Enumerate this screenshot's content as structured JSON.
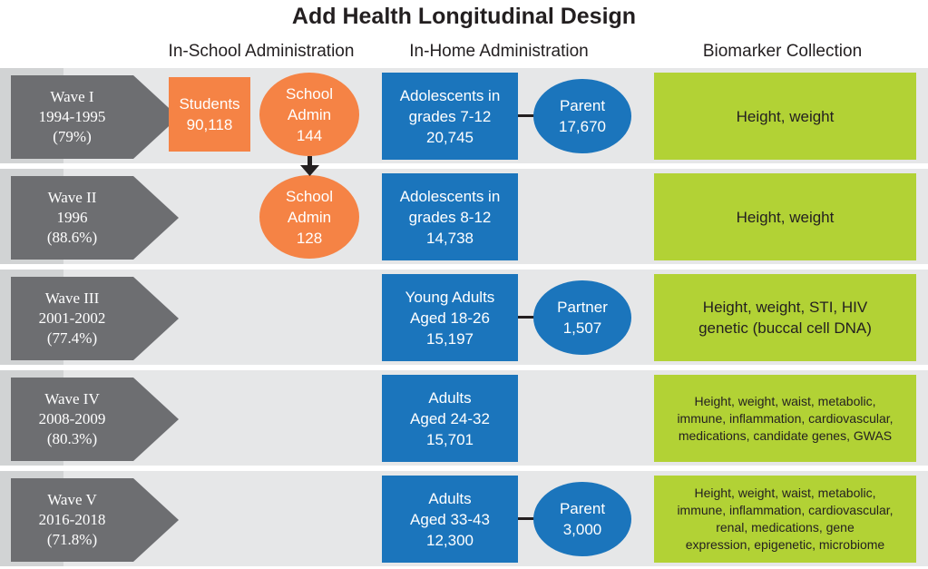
{
  "title": "Add Health Longitudinal Design",
  "columns": {
    "school": "In-School Administration",
    "home": "In-Home Administration",
    "bio": "Biomarker Collection"
  },
  "colors": {
    "orange": "#f58345",
    "blue": "#1b75bc",
    "green": "#b2d235",
    "gray": "#6d6e71",
    "band": "#e6e7e8"
  },
  "waves": [
    {
      "name": "Wave I",
      "years": "1994-1995",
      "rate": "(79%)",
      "students": {
        "label": "Students",
        "count": "90,118"
      },
      "school_admin": {
        "label1": "School",
        "label2": "Admin",
        "count": "144"
      },
      "home": {
        "line1": "Adolescents in",
        "line2": "grades 7-12",
        "count": "20,745"
      },
      "companion": {
        "label": "Parent",
        "count": "17,670"
      },
      "biomarker": "Height, weight"
    },
    {
      "name": "Wave II",
      "years": "1996",
      "rate": "(88.6%)",
      "school_admin": {
        "label1": "School",
        "label2": "Admin",
        "count": "128"
      },
      "home": {
        "line1": "Adolescents in",
        "line2": "grades 8-12",
        "count": "14,738"
      },
      "biomarker": "Height, weight"
    },
    {
      "name": "Wave III",
      "years": "2001-2002",
      "rate": "(77.4%)",
      "home": {
        "line1": "Young Adults",
        "line2": "Aged 18-26",
        "count": "15,197"
      },
      "companion": {
        "label": "Partner",
        "count": "1,507"
      },
      "biomarker_lines": [
        "Height, weight, STI, HIV",
        "genetic (buccal cell DNA)"
      ]
    },
    {
      "name": "Wave IV",
      "years": "2008-2009",
      "rate": "(80.3%)",
      "home": {
        "line1": "Adults",
        "line2": "Aged 24-32",
        "count": "15,701"
      },
      "biomarker_lines": [
        "Height, weight, waist, metabolic,",
        "immune, inflammation, cardiovascular,",
        "medications, candidate genes, GWAS"
      ]
    },
    {
      "name": "Wave V",
      "years": "2016-2018",
      "rate": "(71.8%)",
      "home": {
        "line1": "Adults",
        "line2": "Aged 33-43",
        "count": "12,300"
      },
      "companion": {
        "label": "Parent",
        "count": "3,000"
      },
      "biomarker_lines": [
        "Height, weight, waist, metabolic,",
        "immune, inflammation, cardiovascular,",
        "renal, medications, gene",
        "expression, epigenetic, microbiome"
      ]
    }
  ]
}
